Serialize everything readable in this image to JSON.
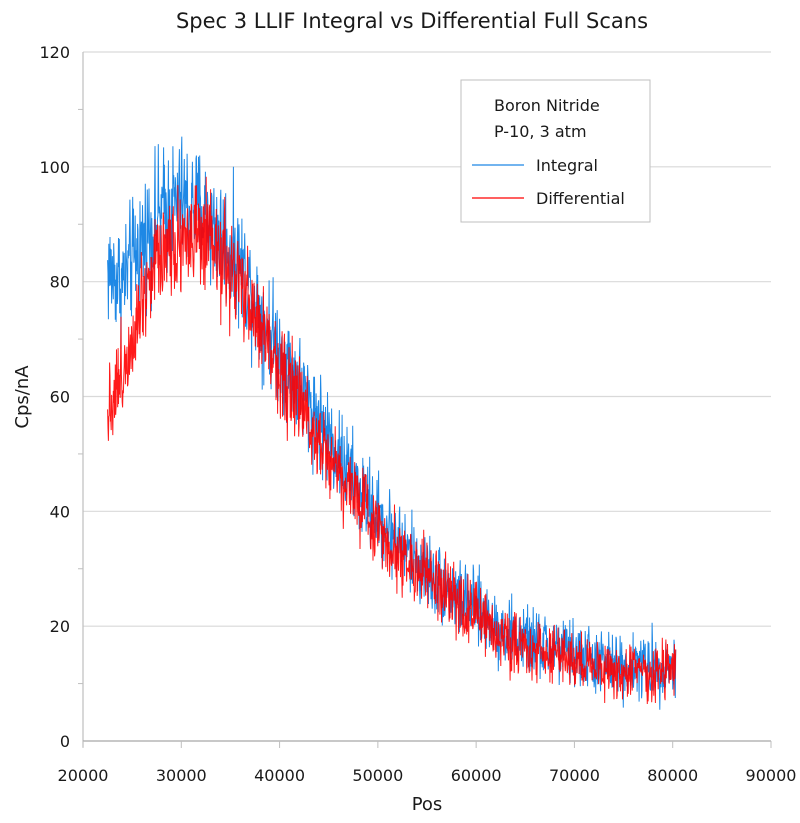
{
  "chart_data": {
    "type": "line",
    "title": "Spec 3 LLIF Integral vs Differential Full Scans",
    "xlabel": "Pos",
    "ylabel": "Cps/nA",
    "xlim": [
      20000,
      90000
    ],
    "ylim": [
      0,
      120
    ],
    "x_ticks": [
      20000,
      30000,
      40000,
      50000,
      60000,
      70000,
      80000,
      90000
    ],
    "y_ticks": [
      0,
      20,
      40,
      60,
      80,
      100,
      120
    ],
    "y_minor_step": 10,
    "grid": "horizontal major",
    "legend": {
      "position": "top-right",
      "header": [
        "Boron Nitride",
        "P-10, 3 atm"
      ],
      "entries": [
        {
          "label": "Integral",
          "color": "#1e88e5"
        },
        {
          "label": "Differential",
          "color": "#ff0000"
        }
      ]
    },
    "series": [
      {
        "name": "Integral",
        "color": "#1e88e5",
        "x_range": [
          22500,
          80300
        ],
        "noise_amplitude": 9,
        "trend": {
          "x": [
            22500,
            24000,
            26000,
            28000,
            30000,
            32000,
            34000,
            36000,
            38000,
            40000,
            42000,
            44000,
            46000,
            48000,
            50000,
            52000,
            54000,
            56000,
            58000,
            60000,
            62000,
            64000,
            66000,
            68000,
            70000,
            72000,
            74000,
            76000,
            78000,
            80300
          ],
          "y": [
            82,
            80,
            87,
            92,
            94,
            92,
            88,
            83,
            75,
            68,
            62,
            56,
            50,
            44,
            39,
            35,
            31,
            28,
            25,
            23,
            20,
            18,
            17,
            16,
            15,
            14,
            13,
            13,
            13,
            13
          ]
        }
      },
      {
        "name": "Differential",
        "color": "#ff0000",
        "x_range": [
          22500,
          80300
        ],
        "noise_amplitude": 8,
        "trend": {
          "x": [
            22500,
            24000,
            26000,
            28000,
            30000,
            32000,
            34000,
            36000,
            38000,
            40000,
            42000,
            44000,
            46000,
            48000,
            50000,
            52000,
            54000,
            56000,
            58000,
            60000,
            62000,
            64000,
            66000,
            68000,
            70000,
            72000,
            74000,
            76000,
            78000,
            80300
          ],
          "y": [
            58,
            64,
            78,
            86,
            88,
            87,
            84,
            79,
            72,
            65,
            59,
            53,
            47,
            42,
            37,
            33,
            30,
            27,
            24,
            22,
            19,
            17,
            16,
            15,
            14,
            13,
            12,
            12,
            12,
            12
          ]
        }
      }
    ]
  }
}
